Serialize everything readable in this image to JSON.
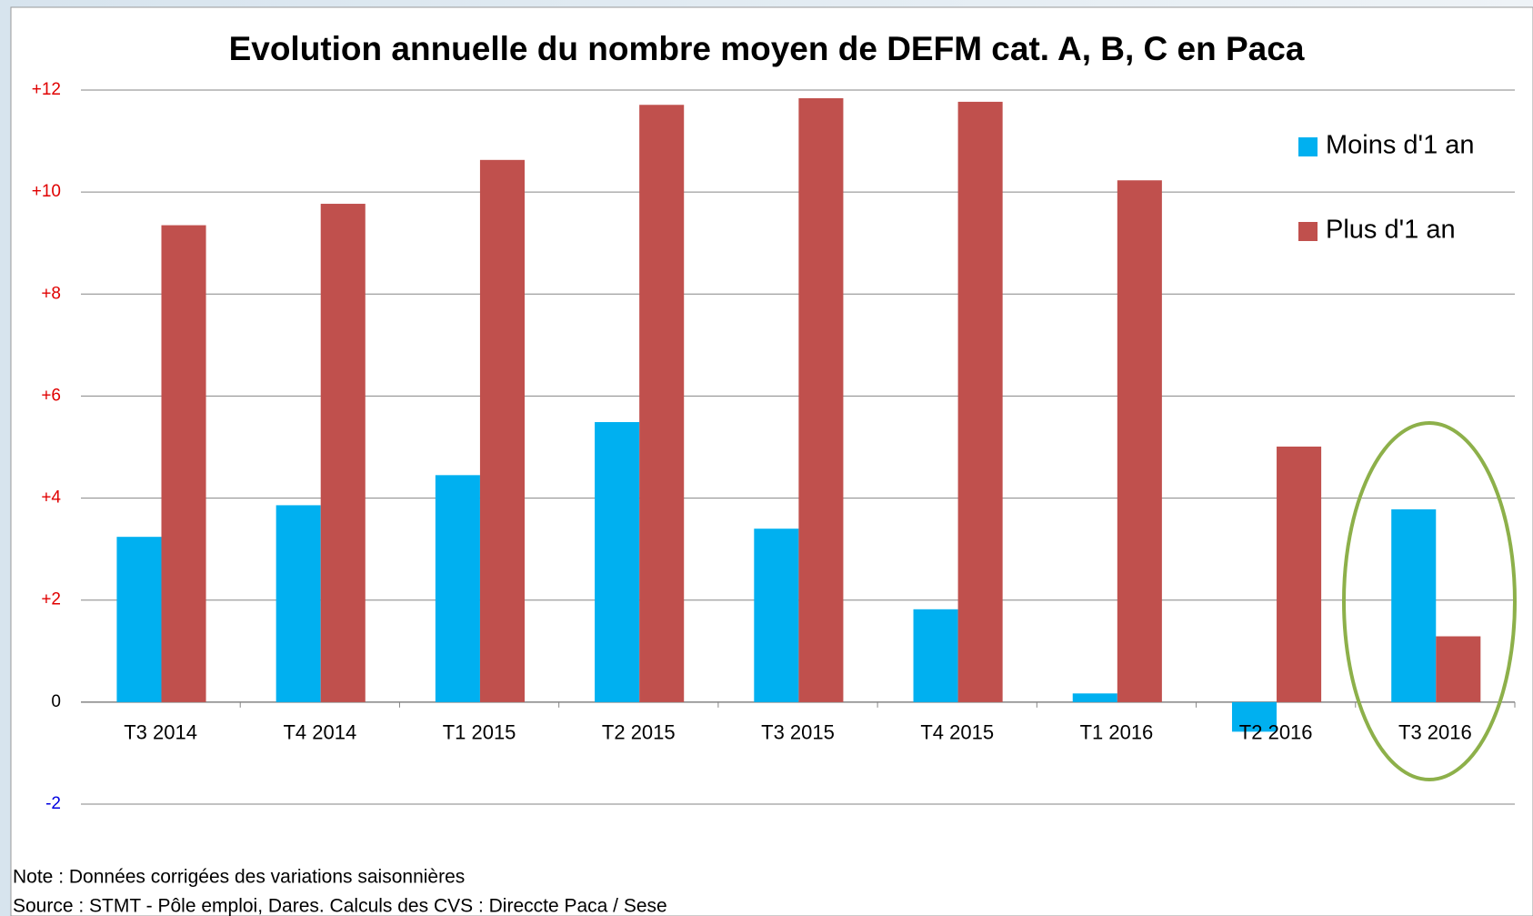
{
  "chart_data": {
    "type": "bar",
    "title": "Evolution annuelle du nombre moyen de DEFM cat. A, B, C en Paca",
    "categories": [
      "T3 2014",
      "T4 2014",
      "T1 2015",
      "T2 2015",
      "T3 2015",
      "T4 2015",
      "T1 2016",
      "T2 2016",
      "T3 2016"
    ],
    "series": [
      {
        "name": "Moins d'1 an",
        "color": "#00b0f0",
        "values": [
          3.24,
          3.86,
          4.45,
          5.49,
          3.4,
          1.82,
          0.17,
          -0.58,
          3.78
        ]
      },
      {
        "name": "Plus d'1 an",
        "color": "#c0504d",
        "values": [
          9.35,
          9.77,
          10.63,
          11.71,
          11.84,
          11.77,
          10.23,
          5.01,
          1.29
        ]
      }
    ],
    "ylim": [
      -2,
      12
    ],
    "yticks": [
      -2,
      0,
      {
        "value": 2,
        "label": "+2"
      },
      {
        "value": 4,
        "label": "+4"
      },
      {
        "value": 6,
        "label": "+6"
      },
      {
        "value": 8,
        "label": "+8"
      },
      {
        "value": 10,
        "label": "+10"
      },
      {
        "value": 12,
        "label": "+12"
      }
    ],
    "grid": true,
    "legend": "top-right",
    "notes": [
      "Note : Données corrigées des variations saisonnières",
      "Source : STMT - Pôle emploi, Dares. Calculs des CVS : Direccte Paca / Sese"
    ]
  }
}
